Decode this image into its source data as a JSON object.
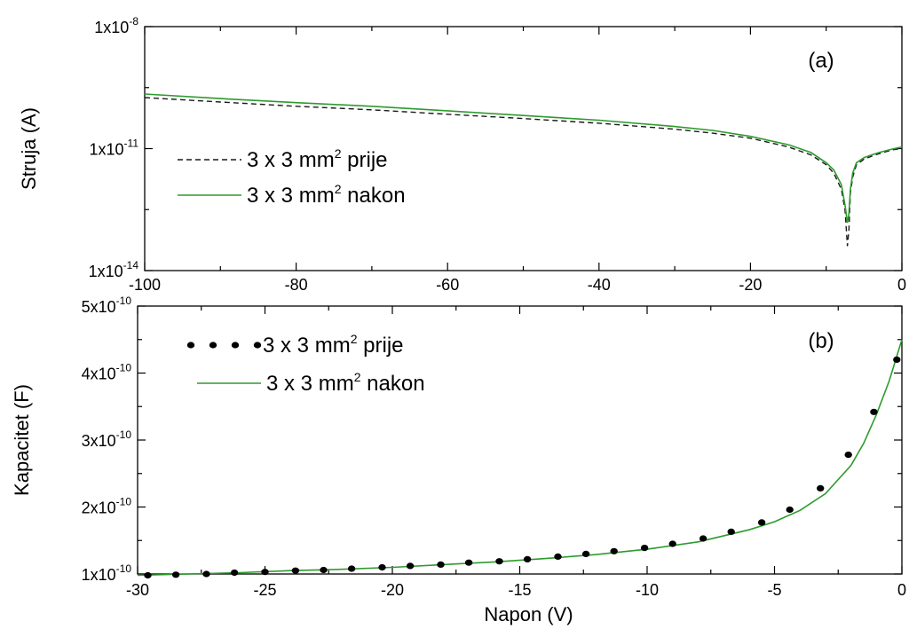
{
  "chart_data": [
    {
      "type": "line",
      "panel_label": "(a)",
      "ylabel": "Struja (A)",
      "yscale": "log",
      "ylim": [
        1e-14,
        1e-08
      ],
      "xlim": [
        -100,
        0
      ],
      "x_ticks": [
        "-100",
        "-80",
        "-60",
        "-40",
        "-20",
        "0"
      ],
      "y_ticks": [
        {
          "base": "1x10",
          "exp": "-14",
          "value": 1e-14
        },
        {
          "base": "1x10",
          "exp": "-11",
          "value": 1e-11
        },
        {
          "base": "1x10",
          "exp": "-8",
          "value": 1e-08
        }
      ],
      "legend": {
        "placement": "left"
      },
      "series": [
        {
          "name": "3 x 3 mm",
          "name_sup": "2",
          "name_suffix": " prije",
          "style": "dashed",
          "color": "#1a1a1a",
          "x": [
            -100,
            -90,
            -80,
            -70,
            -60,
            -50,
            -40,
            -30,
            -25,
            -20,
            -15,
            -12,
            -10,
            -9,
            -8,
            -7.5,
            -7.2,
            -7.0,
            -6.8,
            -6.5,
            -6,
            -5,
            -4,
            -3,
            -2,
            -1,
            0
          ],
          "y": [
            1.8e-10,
            1.4e-10,
            1.1e-10,
            9e-11,
            7e-11,
            5.5e-11,
            4.2e-11,
            3e-11,
            2.4e-11,
            1.8e-11,
            1.1e-11,
            7e-12,
            4e-12,
            2.5e-12,
            1e-12,
            3e-13,
            4e-14,
            1e-13,
            8e-13,
            2e-12,
            4e-12,
            5.5e-12,
            6.5e-12,
            7.5e-12,
            8.5e-12,
            9.5e-12,
            1e-11
          ]
        },
        {
          "name": "3 x 3 mm",
          "name_sup": "2",
          "name_suffix": " nakon",
          "style": "solid",
          "color": "#2e9a2e",
          "x": [
            -100,
            -90,
            -80,
            -70,
            -60,
            -50,
            -40,
            -30,
            -25,
            -20,
            -15,
            -12,
            -10,
            -9,
            -8,
            -7.5,
            -7.2,
            -7.0,
            -6.8,
            -6.5,
            -6,
            -5,
            -4,
            -3,
            -2,
            -1,
            0
          ],
          "y": [
            2.2e-10,
            1.7e-10,
            1.35e-10,
            1.1e-10,
            8.5e-11,
            6.5e-11,
            5e-11,
            3.5e-11,
            2.8e-11,
            2e-11,
            1.25e-11,
            8e-12,
            4.5e-12,
            3e-12,
            1.3e-12,
            4e-13,
            1.5e-13,
            2.5e-13,
            1e-12,
            2.5e-12,
            4.5e-12,
            6e-12,
            7e-12,
            8e-12,
            9e-12,
            1e-11,
            1.1e-11
          ]
        }
      ]
    },
    {
      "type": "line",
      "panel_label": "(b)",
      "xlabel": "Napon (V)",
      "ylabel": "Kapacitet (F)",
      "ylim": [
        1e-10,
        5e-10
      ],
      "xlim": [
        -30,
        0
      ],
      "x_ticks": [
        "-30",
        "-25",
        "-20",
        "-15",
        "-10",
        "-5",
        "0"
      ],
      "y_ticks": [
        {
          "base": "1x10",
          "exp": "-10",
          "value": 1e-10
        },
        {
          "base": "2x10",
          "exp": "-10",
          "value": 2e-10
        },
        {
          "base": "3x10",
          "exp": "-10",
          "value": 3e-10
        },
        {
          "base": "4x10",
          "exp": "-10",
          "value": 4e-10
        },
        {
          "base": "5x10",
          "exp": "-10",
          "value": 5e-10
        }
      ],
      "legend": {
        "placement": "top-left"
      },
      "series": [
        {
          "name": "3 x 3 mm",
          "name_sup": "2",
          "name_suffix": " prije",
          "style": "dotted",
          "color": "#000000",
          "x": [
            -29.6,
            -28.5,
            -27.3,
            -26.2,
            -25.0,
            -23.8,
            -22.7,
            -21.6,
            -20.4,
            -19.3,
            -18.1,
            -17.0,
            -15.8,
            -14.7,
            -13.5,
            -12.4,
            -11.3,
            -10.1,
            -9.0,
            -7.8,
            -6.7,
            -5.5,
            -4.4,
            -3.2,
            -2.1,
            -1.1,
            -0.2
          ],
          "y": [
            9.8e-11,
            9.9e-11,
            1e-10,
            1.02e-10,
            1.03e-10,
            1.05e-10,
            1.06e-10,
            1.08e-10,
            1.1e-10,
            1.12e-10,
            1.14e-10,
            1.17e-10,
            1.19e-10,
            1.22e-10,
            1.26e-10,
            1.3e-10,
            1.34e-10,
            1.39e-10,
            1.45e-10,
            1.53e-10,
            1.63e-10,
            1.77e-10,
            1.96e-10,
            2.28e-10,
            2.78e-10,
            3.42e-10,
            4.2e-10
          ]
        },
        {
          "name": "3 x 3 mm",
          "name_sup": "2",
          "name_suffix": " nakon",
          "style": "solid",
          "color": "#2e9a2e",
          "x": [
            -30,
            -28,
            -26,
            -24,
            -22,
            -20,
            -18,
            -16,
            -14,
            -12,
            -10,
            -8,
            -6,
            -5,
            -4,
            -3,
            -2,
            -1.5,
            -1,
            -0.5,
            0
          ],
          "y": [
            9.8e-11,
            1e-10,
            1.02e-10,
            1.05e-10,
            1.07e-10,
            1.1e-10,
            1.14e-10,
            1.18e-10,
            1.23e-10,
            1.29e-10,
            1.37e-10,
            1.48e-10,
            1.66e-10,
            1.78e-10,
            1.95e-10,
            2.2e-10,
            2.62e-10,
            2.95e-10,
            3.38e-10,
            3.88e-10,
            4.5e-10
          ]
        }
      ]
    }
  ]
}
